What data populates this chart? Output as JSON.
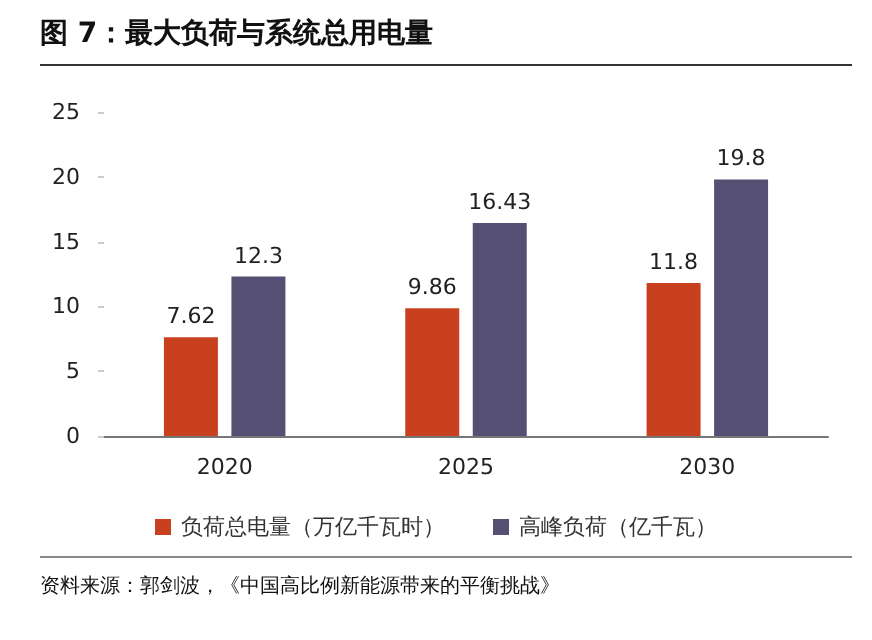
{
  "chart_data": {
    "type": "bar",
    "title": "图 7：最大负荷与系统总用电量",
    "categories": [
      "2020",
      "2025",
      "2030"
    ],
    "series": [
      {
        "name": "负荷总电量（万亿千瓦时）",
        "color": "#c9401f",
        "values": [
          7.62,
          9.86,
          11.8
        ]
      },
      {
        "name": "高峰负荷（亿千瓦）",
        "color": "#544f73",
        "values": [
          12.3,
          16.43,
          19.8
        ]
      }
    ],
    "ylim": [
      0,
      25
    ],
    "yticks": [
      0,
      5,
      10,
      15,
      20,
      25
    ],
    "data_labels": true,
    "legend": "bottom",
    "grid": false,
    "annotations": [
      "资料来源：郭剑波，《中国高比例新能源带来的平衡挑战》"
    ]
  }
}
